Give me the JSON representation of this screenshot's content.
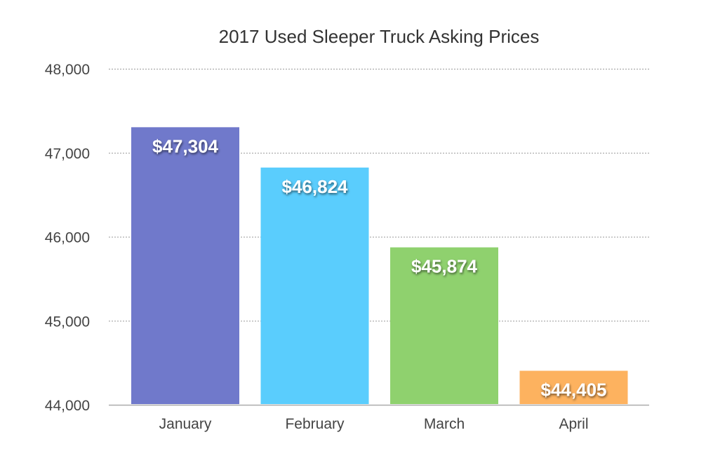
{
  "chart_data": {
    "type": "bar",
    "title": "2017 Used Sleeper Truck Asking Prices",
    "categories": [
      "January",
      "February",
      "March",
      "April"
    ],
    "values": [
      47304,
      46824,
      45874,
      44405
    ],
    "data_labels": [
      "$47,304",
      "$46,824",
      "$45,874",
      "$44,405"
    ],
    "colors": [
      "#7079cb",
      "#5acdfd",
      "#8fd16e",
      "#fdb25f"
    ],
    "xlabel": "",
    "ylabel": "",
    "ylim": [
      44000,
      48000
    ],
    "yticks": [
      44000,
      45000,
      46000,
      47000,
      48000
    ],
    "ytick_labels": [
      "44,000",
      "45,000",
      "46,000",
      "47,000",
      "48,000"
    ],
    "grid": true,
    "legend": "none"
  }
}
